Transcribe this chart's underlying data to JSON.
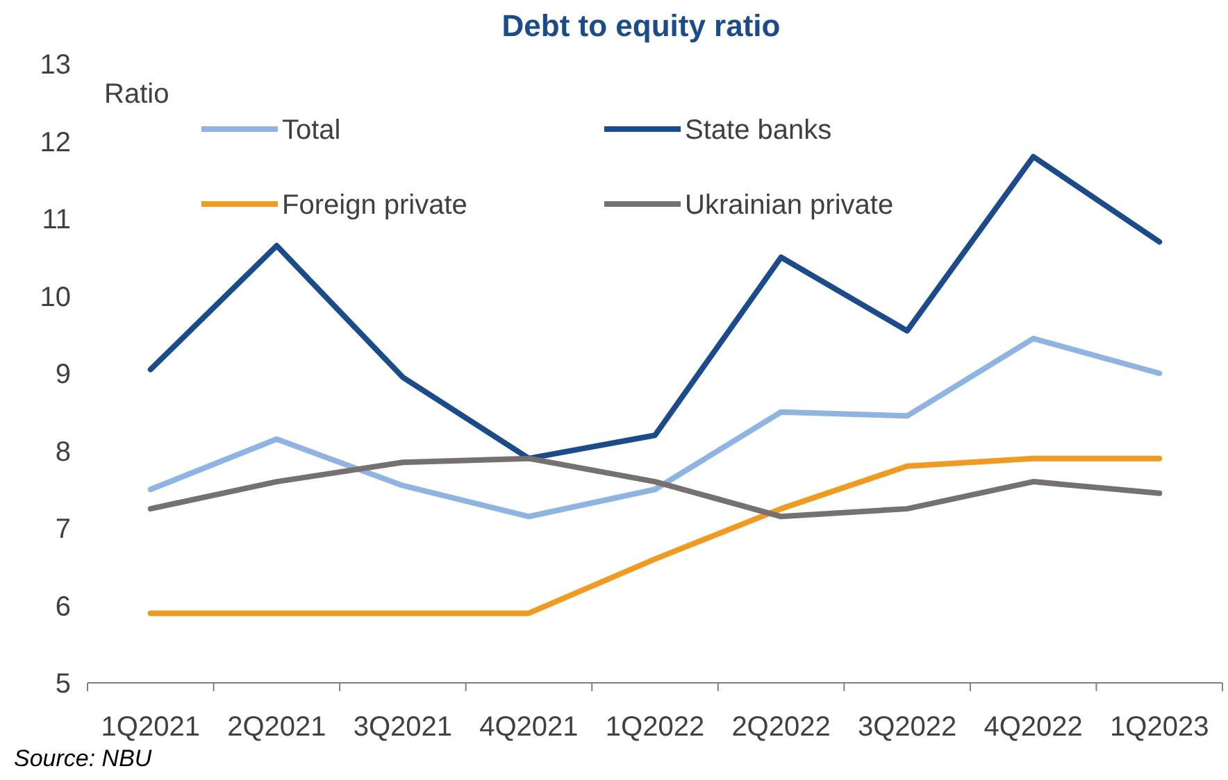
{
  "chart_data": {
    "type": "line",
    "title": "Debt to equity ratio",
    "ylabel": "Ratio",
    "categories": [
      "1Q2021",
      "2Q2021",
      "3Q2021",
      "4Q2021",
      "1Q2022",
      "2Q2022",
      "3Q2022",
      "4Q2022",
      "1Q2023"
    ],
    "series": [
      {
        "name": "Total",
        "color": "#8db4e2",
        "values": [
          7.5,
          8.15,
          7.55,
          7.15,
          7.5,
          8.5,
          8.45,
          9.45,
          9.0
        ]
      },
      {
        "name": "State banks",
        "color": "#1a4b8c",
        "values": [
          9.05,
          10.65,
          8.95,
          7.9,
          8.2,
          10.5,
          9.55,
          11.8,
          10.7
        ]
      },
      {
        "name": "Foreign private",
        "color": "#f39a1e",
        "values": [
          5.9,
          5.9,
          5.9,
          5.9,
          6.6,
          7.25,
          7.8,
          7.9,
          7.9
        ]
      },
      {
        "name": "Ukrainian private",
        "color": "#767171",
        "values": [
          7.25,
          7.6,
          7.85,
          7.9,
          7.6,
          7.15,
          7.25,
          7.6,
          7.45
        ]
      }
    ],
    "ylim": [
      5,
      13
    ],
    "yticks": [
      5,
      6,
      7,
      8,
      9,
      10,
      11,
      12,
      13
    ],
    "grid": false,
    "legend": "top",
    "line_style": "solid",
    "marker": "none",
    "annotations": [
      "Source: NBU"
    ]
  }
}
